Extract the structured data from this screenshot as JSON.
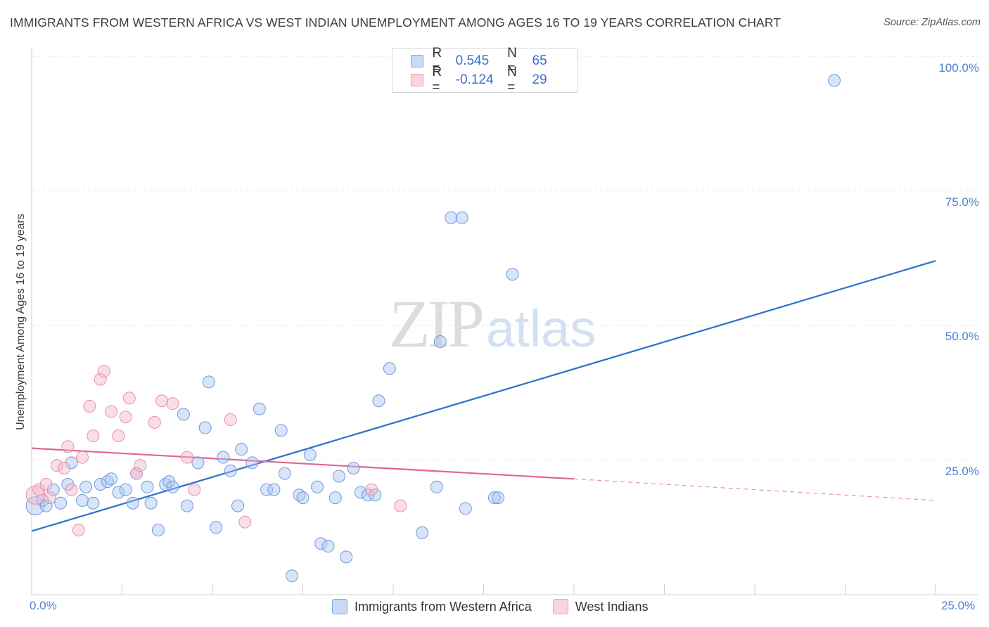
{
  "header": {
    "title": "IMMIGRANTS FROM WESTERN AFRICA VS WEST INDIAN UNEMPLOYMENT AMONG AGES 16 TO 19 YEARS CORRELATION CHART",
    "source": "Source: ZipAtlas.com"
  },
  "watermark": {
    "part1": "ZIP",
    "part2": "atlas"
  },
  "legend_top": {
    "rows": [
      {
        "r_label": "R =",
        "r_value": "0.545",
        "n_label": "N =",
        "n_value": "65",
        "color": "#a9c5f0"
      },
      {
        "r_label": "R =",
        "r_value": "-0.124",
        "n_label": "N =",
        "n_value": "29",
        "color": "#f5b6c8"
      }
    ]
  },
  "legend_bottom": {
    "items": [
      {
        "label": "Immigrants from Western Africa",
        "color": "#a9c5f0"
      },
      {
        "label": "West Indians",
        "color": "#f5b6c8"
      }
    ]
  },
  "axes": {
    "ylabel": "Unemployment Among Ages 16 to 19 years",
    "y_ticks": [
      "100.0%",
      "75.0%",
      "50.0%",
      "25.0%"
    ],
    "x_tick_left": "0.0%",
    "x_tick_right": "25.0%"
  },
  "chart_data": {
    "type": "scatter",
    "xlim": [
      0,
      25
    ],
    "ylim": [
      0,
      100
    ],
    "x_unit": "%",
    "y_unit": "%",
    "grid": true,
    "colors": {
      "series1": "#4f86d9",
      "series2": "#e97aa0",
      "line1": "#2e6fd0",
      "line2": "#e0658f",
      "ticks": "#4f7fd0"
    },
    "series": [
      {
        "name": "Immigrants from Western Africa",
        "r": 0.545,
        "n": 65,
        "trend": {
          "x0": 0,
          "y0": 11.8,
          "x1": 25,
          "y1": 62.0
        },
        "points": [
          {
            "x": 0.1,
            "y": 16.5,
            "size": "large"
          },
          {
            "x": 0.3,
            "y": 17.5
          },
          {
            "x": 0.4,
            "y": 16.5
          },
          {
            "x": 0.6,
            "y": 19.5
          },
          {
            "x": 0.8,
            "y": 17.0
          },
          {
            "x": 1.0,
            "y": 20.5
          },
          {
            "x": 1.1,
            "y": 24.5
          },
          {
            "x": 1.4,
            "y": 17.5
          },
          {
            "x": 1.5,
            "y": 20.0
          },
          {
            "x": 1.7,
            "y": 17.0
          },
          {
            "x": 1.9,
            "y": 20.5
          },
          {
            "x": 2.1,
            "y": 21.0
          },
          {
            "x": 2.2,
            "y": 21.5
          },
          {
            "x": 2.4,
            "y": 19.0
          },
          {
            "x": 2.6,
            "y": 19.5
          },
          {
            "x": 2.8,
            "y": 17.0
          },
          {
            "x": 2.9,
            "y": 22.5
          },
          {
            "x": 3.2,
            "y": 20.0
          },
          {
            "x": 3.3,
            "y": 17.0
          },
          {
            "x": 3.5,
            "y": 12.0
          },
          {
            "x": 3.7,
            "y": 20.5
          },
          {
            "x": 3.8,
            "y": 21.0
          },
          {
            "x": 3.9,
            "y": 20.0
          },
          {
            "x": 4.2,
            "y": 33.5
          },
          {
            "x": 4.3,
            "y": 16.5
          },
          {
            "x": 4.6,
            "y": 24.5
          },
          {
            "x": 4.8,
            "y": 31.0
          },
          {
            "x": 4.9,
            "y": 39.5
          },
          {
            "x": 5.1,
            "y": 12.5
          },
          {
            "x": 5.3,
            "y": 25.5
          },
          {
            "x": 5.5,
            "y": 23.0
          },
          {
            "x": 5.7,
            "y": 16.5
          },
          {
            "x": 5.8,
            "y": 27.0
          },
          {
            "x": 6.1,
            "y": 24.5
          },
          {
            "x": 6.3,
            "y": 34.5
          },
          {
            "x": 6.5,
            "y": 19.5
          },
          {
            "x": 6.7,
            "y": 19.5
          },
          {
            "x": 6.9,
            "y": 30.5
          },
          {
            "x": 7.0,
            "y": 22.5
          },
          {
            "x": 7.2,
            "y": 3.5
          },
          {
            "x": 7.4,
            "y": 18.5
          },
          {
            "x": 7.5,
            "y": 18.0
          },
          {
            "x": 7.7,
            "y": 26.0
          },
          {
            "x": 7.9,
            "y": 20.0
          },
          {
            "x": 8.0,
            "y": 9.5
          },
          {
            "x": 8.2,
            "y": 9.0
          },
          {
            "x": 8.4,
            "y": 18.0
          },
          {
            "x": 8.5,
            "y": 22.0
          },
          {
            "x": 8.7,
            "y": 7.0
          },
          {
            "x": 8.9,
            "y": 23.5
          },
          {
            "x": 9.1,
            "y": 19.0
          },
          {
            "x": 9.3,
            "y": 18.5
          },
          {
            "x": 9.5,
            "y": 18.5
          },
          {
            "x": 9.6,
            "y": 36.0
          },
          {
            "x": 9.9,
            "y": 42.0
          },
          {
            "x": 10.8,
            "y": 11.5
          },
          {
            "x": 11.2,
            "y": 20.0
          },
          {
            "x": 11.3,
            "y": 47.0
          },
          {
            "x": 11.6,
            "y": 70.0
          },
          {
            "x": 11.9,
            "y": 70.0
          },
          {
            "x": 12.0,
            "y": 16.0
          },
          {
            "x": 12.8,
            "y": 18.0
          },
          {
            "x": 12.9,
            "y": 18.0
          },
          {
            "x": 13.3,
            "y": 59.5
          },
          {
            "x": 22.2,
            "y": 95.5
          }
        ]
      },
      {
        "name": "West Indians",
        "r": -0.124,
        "n": 29,
        "trend": {
          "x0": 0,
          "y0": 27.2,
          "x1": 15,
          "y1": 21.5,
          "dashed_to_x": 25,
          "dashed_to_y": 17.5
        },
        "points": [
          {
            "x": 0.1,
            "y": 18.5,
            "size": "large"
          },
          {
            "x": 0.2,
            "y": 19.5
          },
          {
            "x": 0.4,
            "y": 20.5
          },
          {
            "x": 0.5,
            "y": 18.0
          },
          {
            "x": 0.7,
            "y": 24.0
          },
          {
            "x": 0.9,
            "y": 23.5
          },
          {
            "x": 1.0,
            "y": 27.5
          },
          {
            "x": 1.1,
            "y": 19.5
          },
          {
            "x": 1.3,
            "y": 12.0
          },
          {
            "x": 1.4,
            "y": 25.5
          },
          {
            "x": 1.6,
            "y": 35.0
          },
          {
            "x": 1.7,
            "y": 29.5
          },
          {
            "x": 1.9,
            "y": 40.0
          },
          {
            "x": 2.0,
            "y": 41.5
          },
          {
            "x": 2.2,
            "y": 34.0
          },
          {
            "x": 2.4,
            "y": 29.5
          },
          {
            "x": 2.6,
            "y": 33.0
          },
          {
            "x": 2.7,
            "y": 36.5
          },
          {
            "x": 2.9,
            "y": 22.5
          },
          {
            "x": 3.0,
            "y": 24.0
          },
          {
            "x": 3.4,
            "y": 32.0
          },
          {
            "x": 3.6,
            "y": 36.0
          },
          {
            "x": 3.9,
            "y": 35.5
          },
          {
            "x": 4.3,
            "y": 25.5
          },
          {
            "x": 4.5,
            "y": 19.5
          },
          {
            "x": 5.5,
            "y": 32.5
          },
          {
            "x": 5.9,
            "y": 13.5
          },
          {
            "x": 9.4,
            "y": 19.5
          },
          {
            "x": 10.2,
            "y": 16.5
          }
        ]
      }
    ]
  }
}
